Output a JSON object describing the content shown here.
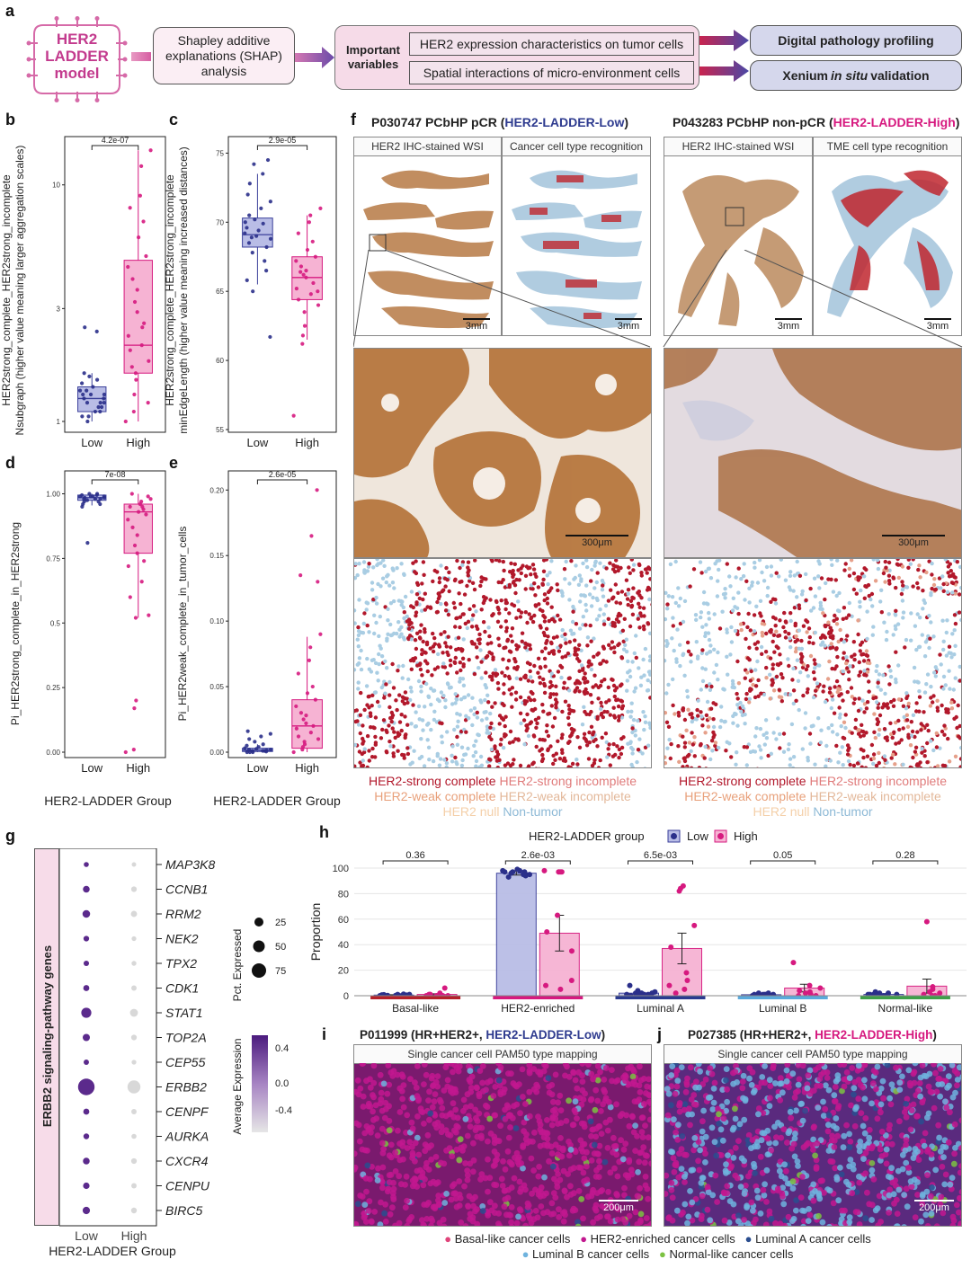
{
  "panel_a": {
    "label": "a",
    "logo_lines": [
      "HER2",
      "LADDER",
      "model"
    ],
    "shap_text": "Shapley additive explanations (SHAP) analysis",
    "important_label": "Important variables",
    "variables": [
      "HER2 expression characteristics on tumor cells",
      "Spatial interactions of micro-environment cells"
    ],
    "outputs": [
      "Digital pathology profiling",
      "Xenium in situ validation"
    ],
    "output2_parts": [
      "Xenium ",
      "in situ",
      " validation"
    ]
  },
  "panel_b": {
    "label": "b",
    "ylabel_1": "HER2strong_complete_HER2strong_incomplete",
    "ylabel_2": "Nsubgraph (higher value meaning larger aggregation scales)",
    "pvalue": "4.2e-07",
    "ticks": [
      "1",
      "3",
      "10"
    ],
    "groups": [
      "Low",
      "High"
    ]
  },
  "panel_c": {
    "label": "c",
    "ylabel_1": "HER2strong_complete_HER2strong_incomplete",
    "ylabel_2": "minEdgeLength (higher value meaning increased distances)",
    "pvalue": "2.9e-05",
    "ticks": [
      "55",
      "60",
      "65",
      "70",
      "75"
    ],
    "groups": [
      "Low",
      "High"
    ]
  },
  "panel_d": {
    "label": "d",
    "ylabel": "Pi_HER2strong_complete_in_HER2strong",
    "pvalue": "7e-08",
    "ticks": [
      "0.00",
      "0.25",
      "0.5",
      "0.75",
      "1.00"
    ],
    "groups": [
      "Low",
      "High"
    ],
    "xlabel": "HER2-LADDER Group"
  },
  "panel_e": {
    "label": "e",
    "ylabel": "Pi_HER2weak_complete_in_tumor_cells",
    "pvalue": "2.6e-05",
    "ticks": [
      "0.00",
      "0.05",
      "0.10",
      "0.15",
      "0.20"
    ],
    "groups": [
      "Low",
      "High"
    ],
    "xlabel": "HER2-LADDER Group"
  },
  "panel_f": {
    "label": "f",
    "left_title_pre": "P030747 PCbHP pCR (",
    "left_title_group": "HER2-LADDER-Low",
    "left_title_post": ")",
    "right_title_pre": "P043283 PCbHP non-pCR (",
    "right_title_group": "HER2-LADDER-High",
    "right_title_post": ")",
    "headers": [
      "HER2 IHC-stained WSI",
      "Cancer cell type recognition",
      "HER2 IHC-stained WSI",
      "TME cell type recognition"
    ],
    "scale_3mm": "3mm",
    "scale_300": "300μm",
    "legend": [
      {
        "text": "HER2-strong complete",
        "color": "#b2182b"
      },
      {
        "text": "HER2-strong incomplete",
        "color": "#e07b7b"
      },
      {
        "text": "HER2-weak complete",
        "color": "#e8a07a"
      },
      {
        "text": "HER2-weak incomplete",
        "color": "#e3b89a"
      },
      {
        "text": "HER2 null",
        "color": "#f4cfa8"
      },
      {
        "text": "Non-tumor",
        "color": "#8db9d6"
      }
    ]
  },
  "panel_g": {
    "label": "g",
    "side_label": "ERBB2 signaling-pathway genes",
    "genes": [
      "MAP3K8",
      "CCNB1",
      "RRM2",
      "NEK2",
      "TPX2",
      "CDK1",
      "STAT1",
      "TOP2A",
      "CEP55",
      "ERBB2",
      "CENPF",
      "AURKA",
      "CXCR4",
      "CENPU",
      "BIRC5"
    ],
    "groups": [
      "Low",
      "High"
    ],
    "xlabel": "HER2-LADDER Group",
    "size_legend_title": "Pct. Expressed",
    "size_legend": [
      "25",
      "50",
      "75"
    ],
    "color_legend_title": "Average Expression",
    "color_legend": [
      "0.4",
      "0.0",
      "-0.4"
    ]
  },
  "panel_h": {
    "label": "h",
    "legend_title": "HER2-LADDER group",
    "legend_items": [
      "Low",
      "High"
    ],
    "ylabel": "Proportion",
    "ticks": [
      "0",
      "20",
      "40",
      "60",
      "80",
      "100"
    ],
    "colors": {
      "low": "#3a3f9a",
      "high": "#e0368a"
    }
  },
  "panel_i": {
    "label": "i",
    "title_pre": "P011999 (HR+HER2+, ",
    "title_group": "HER2-LADDER-Low",
    "title_post": ")",
    "header": "Single cancer cell PAM50 type mapping",
    "scale": "200μm"
  },
  "panel_j": {
    "label": "j",
    "title_pre": "P027385 (HR+HER2+, ",
    "title_group": "HER2-LADDER-High",
    "title_post": ")",
    "header": "Single cancer cell PAM50 type mapping",
    "scale": "200μm"
  },
  "pam50_legend": [
    {
      "text": "Basal-like cancer cells",
      "color": "#e0447a"
    },
    {
      "text": "HER2-enriched cancer cells",
      "color": "#c2188f"
    },
    {
      "text": "Luminal A cancer cells",
      "color": "#2a4d8f"
    },
    {
      "text": "Luminal B cancer cells",
      "color": "#6fb3de"
    },
    {
      "text": "Normal-like cancer cells",
      "color": "#7cc242"
    }
  ],
  "chart_data": [
    {
      "type": "scatter",
      "panel": "b",
      "title": "",
      "ylabel": "HER2strong_complete_HER2strong_incomplete Nsubgraph (higher value meaning larger aggregation scales)",
      "scale": "log",
      "categories": [
        "Low",
        "High"
      ],
      "box": {
        "Low": {
          "q1": 1.1,
          "median": 1.25,
          "q3": 1.4,
          "whisker_low": 1.0,
          "whisker_high": 1.6
        },
        "High": {
          "q1": 1.6,
          "median": 2.1,
          "q3": 4.8,
          "whisker_low": 1.0,
          "whisker_high": 14
        }
      },
      "points": {
        "Low": [
          1.0,
          1.05,
          1.1,
          1.15,
          1.2,
          1.2,
          1.25,
          1.3,
          1.3,
          1.35,
          1.4,
          1.45,
          1.5,
          1.55,
          1.6,
          1.1,
          1.2,
          1.3,
          2.5,
          2.4,
          1.05,
          1.15,
          1.25,
          1.35
        ],
        "High": [
          1.0,
          1.1,
          1.3,
          1.5,
          1.6,
          1.8,
          2.0,
          2.1,
          2.3,
          2.6,
          2.9,
          3.2,
          3.6,
          4.0,
          4.5,
          5.0,
          6.0,
          7.0,
          8.0,
          9.0,
          12.0,
          14.0,
          1.2,
          1.7,
          2.5
        ]
      },
      "pvalue": "4.2e-07"
    },
    {
      "type": "scatter",
      "panel": "c",
      "title": "",
      "ylabel": "HER2strong_complete_HER2strong_incomplete minEdgeLength (higher value meaning increased distances)",
      "ylim": [
        55,
        76
      ],
      "categories": [
        "Low",
        "High"
      ],
      "box": {
        "Low": {
          "q1": 68.2,
          "median": 69.1,
          "q3": 70.3,
          "whisker_low": 65.5,
          "whisker_high": 73.5
        },
        "High": {
          "q1": 64.4,
          "median": 66.0,
          "q3": 67.5,
          "whisker_low": 61.5,
          "whisker_high": 70.5
        }
      },
      "points": {
        "Low": [
          65.0,
          65.8,
          66.5,
          67.2,
          67.8,
          68.2,
          68.5,
          68.8,
          69.0,
          69.2,
          69.4,
          69.6,
          69.9,
          70.2,
          70.5,
          71.0,
          71.5,
          72.0,
          72.8,
          73.5,
          74.2,
          74.5,
          61.7,
          68.9,
          70.0
        ],
        "High": [
          56.0,
          61.2,
          61.8,
          62.5,
          63.5,
          64.0,
          64.4,
          64.8,
          65.2,
          65.6,
          66.0,
          66.2,
          66.5,
          66.8,
          67.2,
          67.5,
          68.0,
          68.6,
          69.2,
          70.0,
          70.5,
          71.0,
          65.0,
          66.4
        ],
        "High_extra": []
      },
      "pvalue": "2.9e-05"
    },
    {
      "type": "scatter",
      "panel": "d",
      "title": "",
      "ylabel": "Pi_HER2strong_complete_in_HER2strong",
      "ylim": [
        0,
        1.02
      ],
      "categories": [
        "Low",
        "High"
      ],
      "box": {
        "Low": {
          "q1": 0.975,
          "median": 0.985,
          "q3": 0.995,
          "whisker_low": 0.955,
          "whisker_high": 1.0
        },
        "High": {
          "q1": 0.77,
          "median": 0.93,
          "q3": 0.96,
          "whisker_low": 0.52,
          "whisker_high": 1.0
        }
      },
      "points": {
        "Low": [
          0.81,
          0.95,
          0.96,
          0.97,
          0.975,
          0.98,
          0.98,
          0.985,
          0.99,
          0.99,
          0.99,
          0.995,
          1.0,
          1.0,
          0.97,
          0.98,
          0.99,
          0.96,
          0.985,
          0.995
        ],
        "High": [
          0.0,
          0.01,
          0.17,
          0.2,
          0.52,
          0.53,
          0.6,
          0.66,
          0.72,
          0.74,
          0.77,
          0.8,
          0.84,
          0.87,
          0.9,
          0.92,
          0.93,
          0.94,
          0.95,
          0.96,
          0.97,
          0.98,
          0.99,
          1.0,
          0.95
        ]
      },
      "pvalue": "7e-08"
    },
    {
      "type": "scatter",
      "panel": "e",
      "title": "",
      "ylabel": "Pi_HER2weak_complete_in_tumor_cells",
      "ylim": [
        0,
        0.205
      ],
      "categories": [
        "Low",
        "High"
      ],
      "box": {
        "Low": {
          "q1": 0.0005,
          "median": 0.0015,
          "q3": 0.003,
          "whisker_low": 0.0,
          "whisker_high": 0.006
        },
        "High": {
          "q1": 0.003,
          "median": 0.02,
          "q3": 0.04,
          "whisker_low": 0.0,
          "whisker_high": 0.088
        }
      },
      "points": {
        "Low": [
          0.0,
          0.0,
          0.0005,
          0.001,
          0.001,
          0.0015,
          0.002,
          0.002,
          0.0025,
          0.003,
          0.004,
          0.005,
          0.006,
          0.008,
          0.01,
          0.012,
          0.014,
          0.016,
          0.0,
          0.001
        ],
        "High": [
          0.0,
          0.002,
          0.004,
          0.006,
          0.008,
          0.01,
          0.012,
          0.015,
          0.018,
          0.02,
          0.022,
          0.025,
          0.028,
          0.03,
          0.035,
          0.04,
          0.045,
          0.05,
          0.06,
          0.07,
          0.08,
          0.09,
          0.13,
          0.135,
          0.165,
          0.2
        ]
      },
      "pvalue": "2.6e-05"
    },
    {
      "type": "scatter",
      "panel": "g",
      "title": "",
      "xlabel": "HER2-LADDER Group",
      "categories": [
        "Low",
        "High"
      ],
      "rows": [
        "MAP3K8",
        "CCNB1",
        "RRM2",
        "NEK2",
        "TPX2",
        "CDK1",
        "STAT1",
        "TOP2A",
        "CEP55",
        "ERBB2",
        "CENPF",
        "AURKA",
        "CXCR4",
        "CENPU",
        "BIRC5"
      ],
      "pct_low": [
        10,
        22,
        28,
        14,
        13,
        17,
        45,
        25,
        12,
        90,
        17,
        15,
        22,
        20,
        26
      ],
      "pct_high": [
        6,
        14,
        18,
        8,
        9,
        12,
        30,
        14,
        8,
        65,
        12,
        10,
        14,
        12,
        15
      ],
      "avg_low": [
        0.5,
        0.5,
        0.5,
        0.5,
        0.5,
        0.5,
        0.5,
        0.5,
        0.5,
        0.5,
        0.5,
        0.5,
        0.5,
        0.5,
        0.5
      ],
      "avg_high": [
        -0.5,
        -0.5,
        -0.5,
        -0.5,
        -0.5,
        -0.5,
        -0.5,
        -0.5,
        -0.5,
        -0.5,
        -0.5,
        -0.5,
        -0.5,
        -0.5,
        -0.5
      ]
    },
    {
      "type": "bar",
      "panel": "h",
      "title": "",
      "ylabel": "Proportion",
      "ylim": [
        0,
        100
      ],
      "categories": [
        "Basal-like",
        "HER2-enriched",
        "Luminal A",
        "Luminal B",
        "Normal-like"
      ],
      "category_colors": [
        "#b5202a",
        "#d6197f",
        "#2a3a8f",
        "#5aa9dc",
        "#3f9f4a"
      ],
      "pvalues": [
        "0.36",
        "2.6e-03",
        "6.5e-03",
        "0.05",
        "0.28"
      ],
      "series": [
        {
          "name": "Low",
          "values": [
            0.5,
            96,
            2,
            0.8,
            1
          ],
          "error": [
            0.3,
            1.5,
            0.8,
            0.4,
            0.5
          ],
          "points": [
            [
              0,
              1,
              0.5,
              0.2,
              1,
              0.3,
              0,
              0.8,
              0.4,
              1.2,
              0.6,
              0.2
            ],
            [
              93,
              94,
              95,
              96,
              96,
              97,
              97,
              98,
              99,
              98,
              95,
              97
            ],
            [
              0,
              1,
              2,
              3,
              1,
              2,
              0,
              1,
              4,
              8,
              2,
              1
            ],
            [
              0,
              1,
              0,
              2,
              1,
              0,
              1,
              0,
              1,
              2,
              1,
              0
            ],
            [
              0,
              1,
              2,
              0,
              1,
              0,
              1,
              3,
              2,
              1,
              0,
              1
            ]
          ]
        },
        {
          "name": "High",
          "values": [
            1,
            49,
            37,
            6,
            7.5
          ],
          "error": [
            0.5,
            14,
            12,
            3,
            5.5
          ],
          "points": [
            [
              0,
              0,
              1,
              2,
              6,
              1,
              0,
              1,
              0
            ],
            [
              97,
              97,
              97,
              98,
              63,
              50,
              35,
              12,
              8,
              5
            ],
            [
              86,
              84,
              82,
              55,
              38,
              18,
              12,
              8,
              5,
              2
            ],
            [
              26,
              8,
              6,
              4,
              3,
              2,
              1,
              0,
              0
            ],
            [
              58,
              7,
              5,
              3,
              2,
              1,
              0,
              0
            ]
          ]
        }
      ]
    }
  ]
}
